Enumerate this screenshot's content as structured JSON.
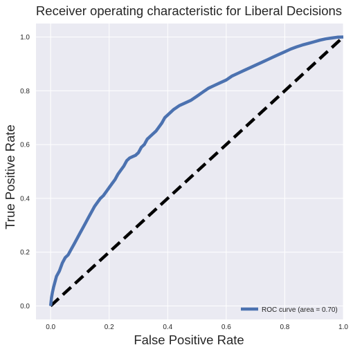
{
  "chart_data": {
    "type": "line",
    "title": "Receiver operating characteristic for Liberal Decisions",
    "xlabel": "False Positive Rate",
    "ylabel": "True Positive Rate",
    "xlim": [
      -0.05,
      1.0
    ],
    "ylim": [
      -0.05,
      1.05
    ],
    "xticks": [
      "0.0",
      "0.2",
      "0.4",
      "0.6",
      "0.8",
      "1.0"
    ],
    "yticks": [
      "0.0",
      "0.2",
      "0.4",
      "0.6",
      "0.8",
      "1.0"
    ],
    "grid": true,
    "legend_position": "lower right",
    "series": [
      {
        "name": "ROC curve (area = 0.70)",
        "color": "#4c72b0",
        "style": "solid",
        "x": [
          0.0,
          0.003,
          0.006,
          0.01,
          0.015,
          0.02,
          0.03,
          0.04,
          0.05,
          0.06,
          0.07,
          0.08,
          0.09,
          0.1,
          0.11,
          0.12,
          0.13,
          0.14,
          0.15,
          0.16,
          0.17,
          0.18,
          0.19,
          0.2,
          0.21,
          0.22,
          0.23,
          0.24,
          0.25,
          0.26,
          0.27,
          0.28,
          0.29,
          0.3,
          0.31,
          0.32,
          0.33,
          0.34,
          0.35,
          0.36,
          0.37,
          0.38,
          0.39,
          0.4,
          0.42,
          0.44,
          0.46,
          0.48,
          0.5,
          0.52,
          0.54,
          0.56,
          0.58,
          0.6,
          0.62,
          0.64,
          0.66,
          0.68,
          0.7,
          0.72,
          0.74,
          0.76,
          0.78,
          0.8,
          0.82,
          0.84,
          0.86,
          0.88,
          0.9,
          0.92,
          0.94,
          0.96,
          0.98,
          1.0
        ],
        "y": [
          0.0,
          0.03,
          0.05,
          0.07,
          0.09,
          0.11,
          0.13,
          0.16,
          0.18,
          0.19,
          0.21,
          0.23,
          0.25,
          0.27,
          0.29,
          0.31,
          0.33,
          0.35,
          0.37,
          0.385,
          0.4,
          0.41,
          0.425,
          0.44,
          0.455,
          0.47,
          0.49,
          0.505,
          0.52,
          0.54,
          0.55,
          0.555,
          0.56,
          0.57,
          0.59,
          0.6,
          0.62,
          0.63,
          0.64,
          0.65,
          0.665,
          0.68,
          0.7,
          0.71,
          0.73,
          0.745,
          0.755,
          0.765,
          0.78,
          0.795,
          0.81,
          0.82,
          0.83,
          0.84,
          0.855,
          0.865,
          0.875,
          0.885,
          0.895,
          0.905,
          0.915,
          0.925,
          0.935,
          0.945,
          0.955,
          0.963,
          0.97,
          0.976,
          0.982,
          0.988,
          0.993,
          0.996,
          0.999,
          1.0
        ]
      },
      {
        "name": "",
        "color": "#000000",
        "style": "dashed",
        "x": [
          0.0,
          1.0
        ],
        "y": [
          0.0,
          1.0
        ]
      }
    ]
  }
}
